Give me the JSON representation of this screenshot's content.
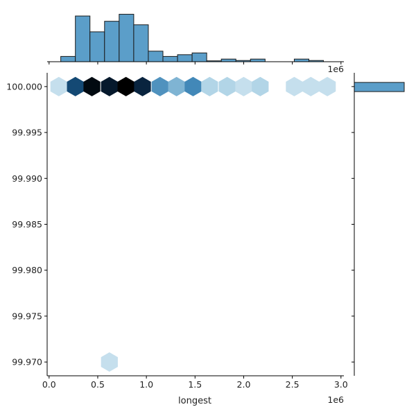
{
  "chart_data": {
    "type": "jointplot-hexbin",
    "xlabel": "longest",
    "ylabel": "",
    "x_offset_label": "1e6",
    "joint": {
      "xlim": [
        -0.02,
        3.03
      ],
      "ylim": [
        99.9685,
        100.0015
      ],
      "x_ticks": [
        0.0,
        0.5,
        1.0,
        1.5,
        2.0,
        2.5,
        3.0
      ],
      "x_tick_labels": [
        "0.0",
        "0.5",
        "1.0",
        "1.5",
        "2.0",
        "2.5",
        "3.0"
      ],
      "y_ticks": [
        100.0,
        99.995,
        99.99,
        99.985,
        99.98,
        99.975,
        99.97
      ],
      "y_tick_labels": [
        "100.000",
        "99.995",
        "99.990",
        "99.985",
        "99.980",
        "99.975",
        "99.970"
      ],
      "hexbins": [
        {
          "x": 0.1,
          "y": 100.0,
          "count": 1
        },
        {
          "x": 0.27,
          "y": 100.0,
          "count": 16
        },
        {
          "x": 0.44,
          "y": 100.0,
          "count": 26
        },
        {
          "x": 0.62,
          "y": 100.0,
          "count": 23
        },
        {
          "x": 0.79,
          "y": 100.0,
          "count": 28
        },
        {
          "x": 0.96,
          "y": 100.0,
          "count": 21
        },
        {
          "x": 1.14,
          "y": 100.0,
          "count": 8
        },
        {
          "x": 1.31,
          "y": 100.0,
          "count": 5
        },
        {
          "x": 1.48,
          "y": 100.0,
          "count": 9
        },
        {
          "x": 1.65,
          "y": 100.0,
          "count": 2
        },
        {
          "x": 1.83,
          "y": 100.0,
          "count": 2
        },
        {
          "x": 2.0,
          "y": 100.0,
          "count": 1
        },
        {
          "x": 2.17,
          "y": 100.0,
          "count": 2
        },
        {
          "x": 2.52,
          "y": 100.0,
          "count": 1
        },
        {
          "x": 2.69,
          "y": 100.0,
          "count": 1
        },
        {
          "x": 2.86,
          "y": 100.0,
          "count": 1
        },
        {
          "x": 0.62,
          "y": 99.97,
          "count": 1
        }
      ],
      "max_count": 28
    },
    "marginal_x": {
      "type": "bar",
      "bin_edges": [
        0.12,
        0.27,
        0.42,
        0.57,
        0.72,
        0.87,
        1.02,
        1.17,
        1.32,
        1.47,
        1.62,
        1.77,
        1.92,
        2.07,
        2.22,
        2.37,
        2.52,
        2.67,
        2.82
      ],
      "values": [
        3,
        26,
        17,
        23,
        27,
        21,
        6,
        3,
        4,
        5,
        0.5,
        1.5,
        0.7,
        1.5,
        0,
        0,
        1.5,
        0.7
      ],
      "ymax": 28
    },
    "marginal_y": {
      "type": "bar",
      "bin_edges": [
        99.999,
        100.0
      ],
      "values": [
        147
      ],
      "xmax": 147
    },
    "colors": {
      "bar_fill": "#5b9ec9",
      "bar_edge": "#1a1a1a",
      "hex_low": "#f3f8fc",
      "hex_mid": "#9ecae1",
      "hex_high": "#1f6fa8",
      "hex_max": "#000000"
    }
  }
}
